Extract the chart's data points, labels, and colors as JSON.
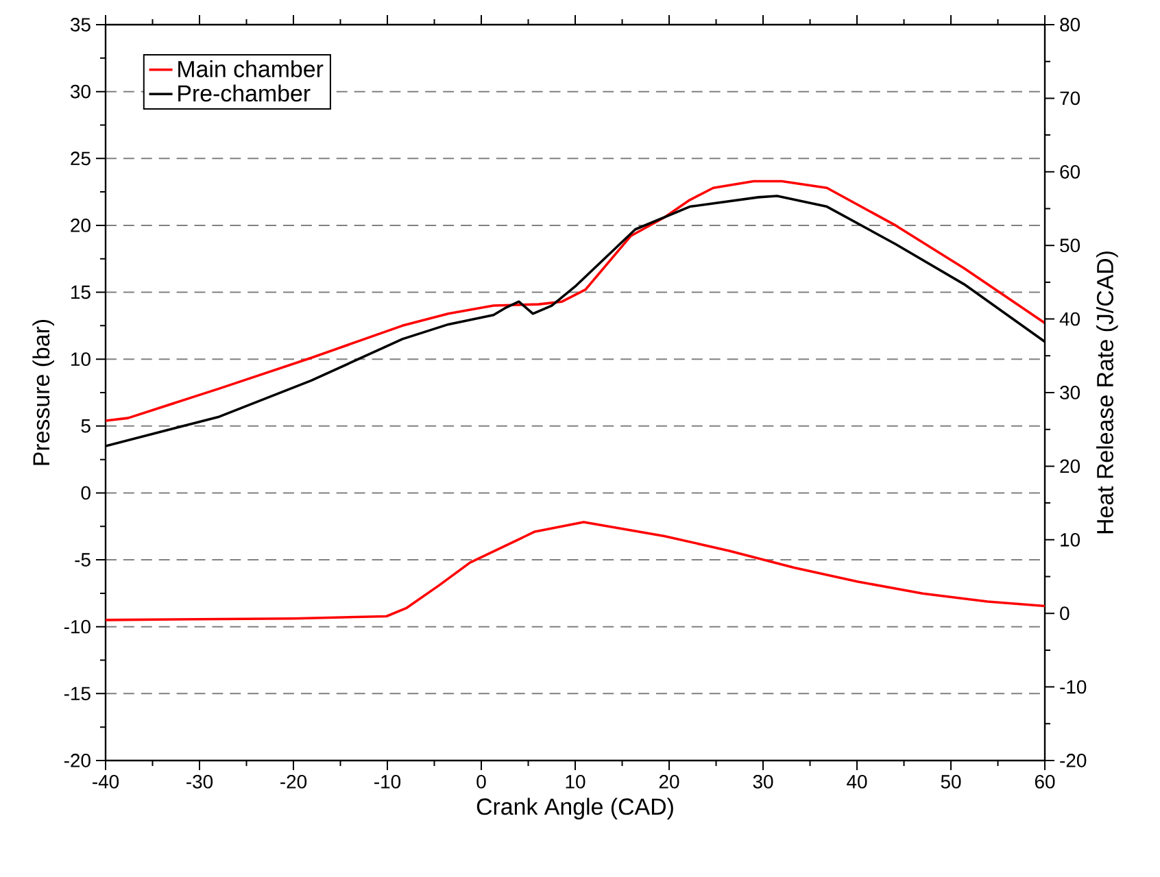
{
  "chart_data": {
    "type": "line",
    "xlabel": "Crank Angle (CAD)",
    "ylabel": "Pressure (bar)",
    "y2label": "Heat Release Rate (J/CAD)",
    "xlim": [
      -40,
      60
    ],
    "ylim": [
      -20,
      35
    ],
    "y2lim": [
      -20,
      80
    ],
    "xticks": [
      -40,
      -30,
      -20,
      -10,
      0,
      10,
      20,
      30,
      40,
      50,
      60
    ],
    "yticks": [
      -20,
      -15,
      -10,
      -5,
      0,
      5,
      10,
      15,
      20,
      25,
      30,
      35
    ],
    "y2ticks": [
      -20,
      -10,
      0,
      10,
      20,
      30,
      40,
      50,
      60,
      70,
      80
    ],
    "grid": "y",
    "legend": "top left",
    "marker": "none",
    "line_style": "solid",
    "series": [
      {
        "name": "Main chamber",
        "color": "#ff0000",
        "x": [
          -40,
          -37.6,
          -27.9,
          -18.1,
          -8.4,
          -3.5,
          1.3,
          6.1,
          8.6,
          11.1,
          15.9,
          19.5,
          22.2,
          24.7,
          29,
          32,
          36.8,
          44.1,
          51.4,
          60
        ],
        "values": [
          5.4,
          5.6,
          7.8,
          10.1,
          12.5,
          13.4,
          14.0,
          14.1,
          14.3,
          15.2,
          19.2,
          20.6,
          21.9,
          22.8,
          23.3,
          23.3,
          22.8,
          20.0,
          16.8,
          12.7
        ]
      },
      {
        "name": "Pre-chamber",
        "color": "#000000",
        "x": [
          -40,
          -27.9,
          -18.1,
          -8.4,
          -3.5,
          1.3,
          2.5,
          4.0,
          5.5,
          7.5,
          10.1,
          16.4,
          22.2,
          29.5,
          31.5,
          36.8,
          44.1,
          51.4,
          60
        ],
        "values": [
          3.5,
          5.7,
          8.4,
          11.5,
          12.6,
          13.3,
          13.8,
          14.3,
          13.4,
          14.0,
          15.5,
          19.7,
          21.4,
          22.1,
          22.2,
          21.4,
          18.6,
          15.6,
          11.3
        ]
      },
      {
        "color": "#ff0000",
        "axis": "y2",
        "x": [
          -40,
          -20,
          -10.1,
          -8,
          -4.5,
          -1.2,
          5.7,
          10.9,
          19.5,
          26.4,
          33.3,
          40.1,
          47,
          53.9,
          60
        ],
        "values": [
          -0.9,
          -0.7,
          -0.4,
          0.7,
          3.8,
          6.9,
          11.1,
          12.4,
          10.5,
          8.5,
          6.2,
          4.3,
          2.7,
          1.6,
          1.0
        ]
      }
    ]
  }
}
